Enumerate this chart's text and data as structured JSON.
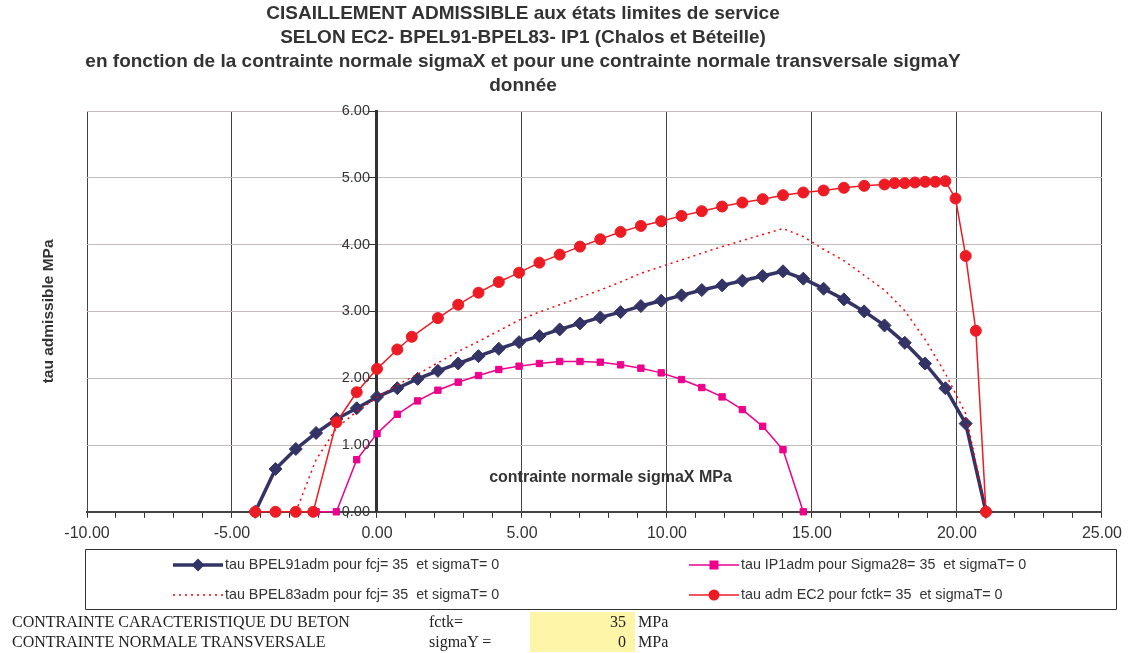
{
  "chart_data": {
    "type": "line",
    "title": "CISAILLEMENT ADMISSIBLE aux états limites de service\nSELON EC2- BPEL91-BPEL83- IP1 (Chalos et Béteille)\nen fonction de la contrainte normale sigmaX et pour une contrainte normale transversale sigmaY\ndonnée",
    "xlabel": "contrainte normale sigmaX MPa",
    "ylabel": "tau admissible MPa",
    "xlim": [
      -10,
      25
    ],
    "xticks": [
      {
        "value": -10,
        "label": "-10.00"
      },
      {
        "value": -9,
        "label": null
      },
      {
        "value": -8,
        "label": null
      },
      {
        "value": -7,
        "label": null
      },
      {
        "value": -6,
        "label": null
      },
      {
        "value": -5,
        "label": "-5.00"
      },
      {
        "value": -4,
        "label": null
      },
      {
        "value": -3,
        "label": null
      },
      {
        "value": -2,
        "label": null
      },
      {
        "value": -1,
        "label": null
      },
      {
        "value": 0,
        "label": "0.00"
      },
      {
        "value": 1,
        "label": null
      },
      {
        "value": 2,
        "label": null
      },
      {
        "value": 3,
        "label": null
      },
      {
        "value": 4,
        "label": null
      },
      {
        "value": 5,
        "label": "5.00"
      },
      {
        "value": 6,
        "label": null
      },
      {
        "value": 7,
        "label": null
      },
      {
        "value": 8,
        "label": null
      },
      {
        "value": 9,
        "label": null
      },
      {
        "value": 10,
        "label": "10.00"
      },
      {
        "value": 11,
        "label": null
      },
      {
        "value": 12,
        "label": null
      },
      {
        "value": 13,
        "label": null
      },
      {
        "value": 14,
        "label": null
      },
      {
        "value": 15,
        "label": "15.00"
      },
      {
        "value": 16,
        "label": null
      },
      {
        "value": 17,
        "label": null
      },
      {
        "value": 18,
        "label": null
      },
      {
        "value": 19,
        "label": null
      },
      {
        "value": 20,
        "label": "20.00"
      },
      {
        "value": 21,
        "label": null
      },
      {
        "value": 22,
        "label": null
      },
      {
        "value": 23,
        "label": null
      },
      {
        "value": 24,
        "label": null
      },
      {
        "value": 25,
        "label": "25.00"
      }
    ],
    "ylim": [
      0,
      6
    ],
    "yticks": [
      {
        "value": 0,
        "label": "0.00"
      },
      {
        "value": 1,
        "label": "1.00"
      },
      {
        "value": 2,
        "label": "2.00"
      },
      {
        "value": 3,
        "label": "3.00"
      },
      {
        "value": 4,
        "label": "4.00"
      },
      {
        "value": 5,
        "label": "5.00"
      },
      {
        "value": 6,
        "label": "6.00"
      }
    ],
    "grid": true,
    "legend": "bottom",
    "series": [
      {
        "name": "tau BPEL91adm pour fcj= 35  et sigmaT= 0",
        "color": "#333366",
        "marker": "diamond",
        "line_style": "solid",
        "x": [
          -4.2,
          -3.5,
          -2.8,
          -2.1,
          -1.4,
          -0.7,
          0,
          0.7,
          1.4,
          2.1,
          2.8,
          3.5,
          4.2,
          4.9,
          5.6,
          6.3,
          7.0,
          7.7,
          8.4,
          9.1,
          9.8,
          10.5,
          11.2,
          11.9,
          12.6,
          13.3,
          14.0,
          14.7,
          15.4,
          16.1,
          16.8,
          17.5,
          18.2,
          18.9,
          19.6,
          20.3,
          21.0
        ],
        "values": [
          0,
          0.64,
          0.94,
          1.18,
          1.39,
          1.55,
          1.72,
          1.85,
          1.99,
          2.11,
          2.22,
          2.33,
          2.44,
          2.54,
          2.63,
          2.73,
          2.82,
          2.91,
          2.99,
          3.08,
          3.16,
          3.24,
          3.32,
          3.39,
          3.46,
          3.53,
          3.6,
          3.49,
          3.34,
          3.18,
          3.0,
          2.79,
          2.53,
          2.22,
          1.85,
          1.32,
          0
        ]
      },
      {
        "name": "tau IP1adm pour Sigma28= 35  et sigmaT= 0",
        "color": "#ec008c",
        "marker": "square",
        "line_style": "solid",
        "x": [
          -2.1,
          -1.4,
          -0.7,
          0,
          0.7,
          1.4,
          2.1,
          2.8,
          3.5,
          4.2,
          4.9,
          5.6,
          6.3,
          7.0,
          7.7,
          8.4,
          9.1,
          9.8,
          10.5,
          11.2,
          11.9,
          12.6,
          13.3,
          14.0,
          14.7
        ],
        "values": [
          0,
          0,
          0.78,
          1.17,
          1.46,
          1.66,
          1.82,
          1.94,
          2.04,
          2.13,
          2.18,
          2.22,
          2.25,
          2.25,
          2.24,
          2.2,
          2.15,
          2.08,
          1.98,
          1.86,
          1.72,
          1.53,
          1.28,
          0.93,
          0
        ]
      },
      {
        "name": "tau BPEL83adm pour fcj= 35  et sigmaT= 0",
        "color": "#ff0000",
        "marker": "none",
        "line_style": "dotted",
        "x": [
          -2.8,
          -2.1,
          -1.4,
          -0.7,
          0,
          0.7,
          1.4,
          2.1,
          2.8,
          3.5,
          4.2,
          4.9,
          5.6,
          6.3,
          7.0,
          7.7,
          8.4,
          9.1,
          9.8,
          10.5,
          11.2,
          11.9,
          12.6,
          13.3,
          14.0,
          14.7,
          15.4,
          16.1,
          16.8,
          17.5,
          18.2,
          18.9,
          19.6,
          20.3,
          21.0
        ],
        "values": [
          0,
          0.78,
          1.25,
          1.5,
          1.71,
          1.9,
          2.06,
          2.23,
          2.4,
          2.55,
          2.71,
          2.87,
          2.99,
          3.1,
          3.21,
          3.32,
          3.44,
          3.57,
          3.67,
          3.77,
          3.87,
          3.97,
          4.06,
          4.15,
          4.24,
          4.12,
          3.93,
          3.76,
          3.54,
          3.32,
          3.01,
          2.58,
          2.07,
          1.47,
          0
        ]
      },
      {
        "name": "tau adm EC2 pour fctk= 35  et sigmaT= 0",
        "color": "#ed1c24",
        "marker": "circle",
        "line_style": "solid",
        "x": [
          -4.2,
          -3.5,
          -2.8,
          -2.2,
          -1.4,
          -0.7,
          0,
          0.7,
          1.2,
          2.1,
          2.8,
          3.5,
          4.2,
          4.9,
          5.6,
          6.3,
          7.0,
          7.7,
          8.4,
          9.1,
          9.8,
          10.5,
          11.2,
          11.9,
          12.6,
          13.3,
          14.0,
          14.7,
          15.4,
          16.1,
          16.8,
          17.5,
          17.85,
          18.2,
          18.55,
          18.9,
          19.25,
          19.6,
          19.95,
          20.3,
          20.65,
          21.0
        ],
        "values": [
          0,
          0,
          0,
          0,
          1.34,
          1.79,
          2.14,
          2.43,
          2.62,
          2.9,
          3.1,
          3.28,
          3.44,
          3.58,
          3.73,
          3.85,
          3.97,
          4.08,
          4.19,
          4.28,
          4.35,
          4.43,
          4.5,
          4.57,
          4.63,
          4.68,
          4.74,
          4.78,
          4.81,
          4.85,
          4.88,
          4.9,
          4.92,
          4.92,
          4.93,
          4.94,
          4.94,
          4.95,
          4.69,
          3.83,
          2.71,
          0
        ]
      }
    ],
    "annotations": [
      "CONTRAINTE CARACTERISTIQUE DU BETON",
      "fctk=",
      "35",
      "MPa",
      "CONTRAINTE NORMALE TRANSVERSALE",
      "sigmaY =",
      "0",
      "MPa"
    ]
  }
}
